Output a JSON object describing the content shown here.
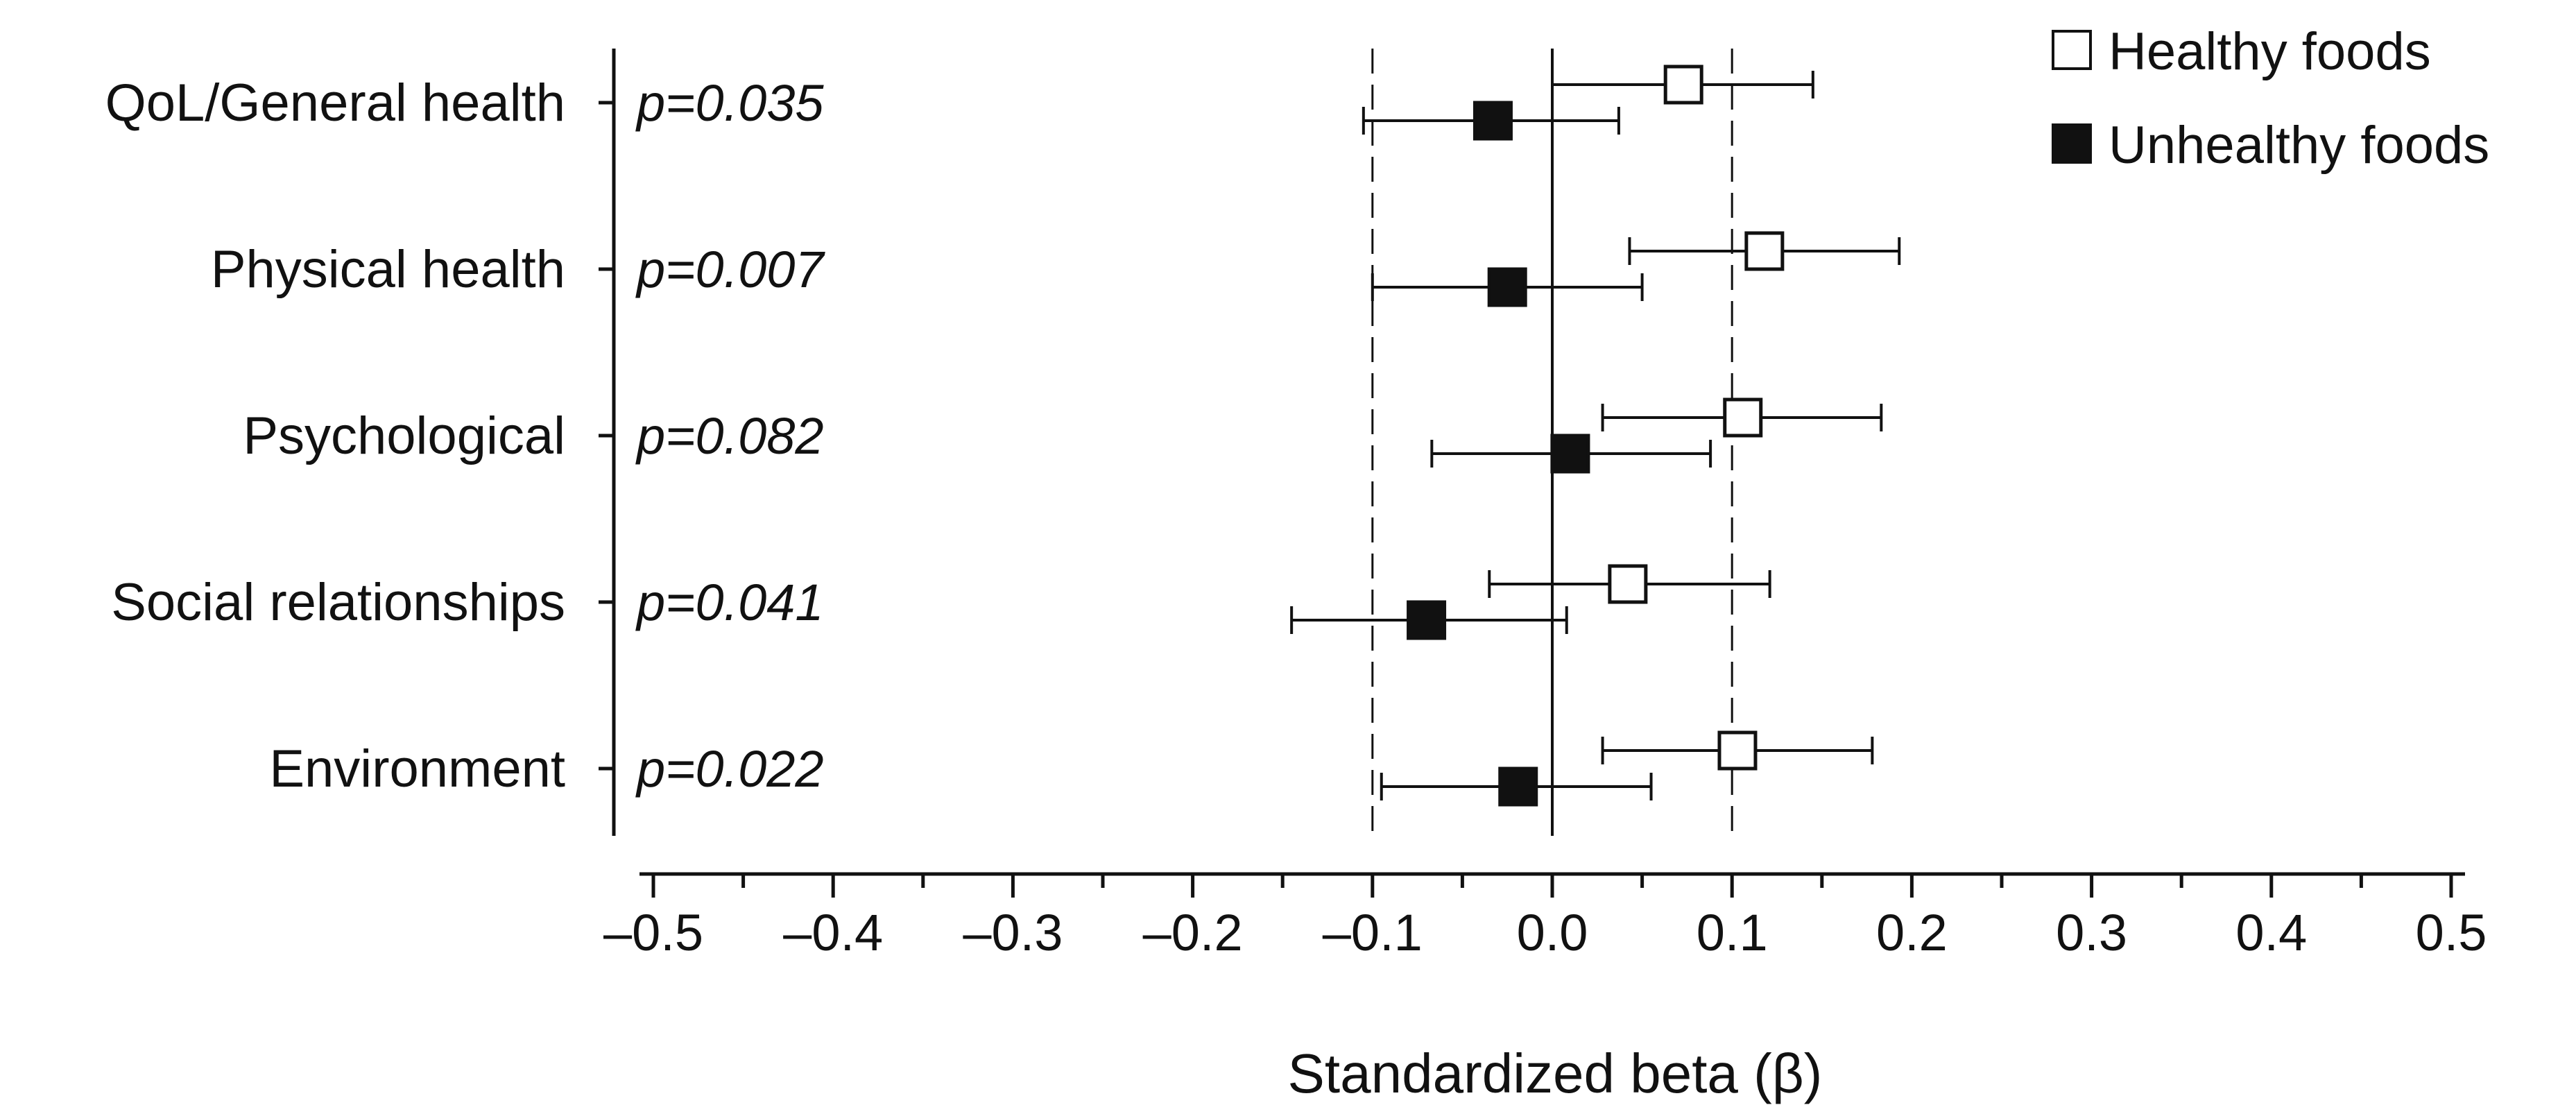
{
  "chart_data": {
    "type": "forest",
    "xlabel": "Standardized beta (β)",
    "xlim": [
      -0.5,
      0.5
    ],
    "x_ticks": [
      -0.5,
      -0.4,
      -0.3,
      -0.2,
      -0.1,
      0.0,
      0.1,
      0.2,
      0.3,
      0.4,
      0.5
    ],
    "x_tick_labels": [
      "–0.5",
      "–0.4",
      "–0.3",
      "–0.2",
      "–0.1",
      "0.0",
      "0.1",
      "0.2",
      "0.3",
      "0.4",
      "0.5"
    ],
    "reference_lines": [
      -0.1,
      0.1
    ],
    "zero_line": 0.0,
    "categories": [
      "QoL/General health",
      "Physical health",
      "Psychological",
      "Social relationships",
      "Environment"
    ],
    "p_values": [
      "p=0.035",
      "p=0.007",
      "p=0.082",
      "p=0.041",
      "p=0.022"
    ],
    "series": [
      {
        "name": "Healthy foods",
        "fill": "#ffffff",
        "estimates": [
          0.073,
          0.118,
          0.106,
          0.042,
          0.103
        ],
        "ci_low": [
          0.0,
          0.043,
          0.028,
          -0.035,
          0.028
        ],
        "ci_high": [
          0.145,
          0.193,
          0.183,
          0.121,
          0.178
        ]
      },
      {
        "name": "Unhealthy foods",
        "fill": "#111111",
        "estimates": [
          -0.033,
          -0.025,
          0.01,
          -0.07,
          -0.019
        ],
        "ci_low": [
          -0.105,
          -0.1,
          -0.067,
          -0.145,
          -0.095
        ],
        "ci_high": [
          0.037,
          0.05,
          0.088,
          0.008,
          0.055
        ]
      }
    ],
    "legend_position": "top-right"
  }
}
